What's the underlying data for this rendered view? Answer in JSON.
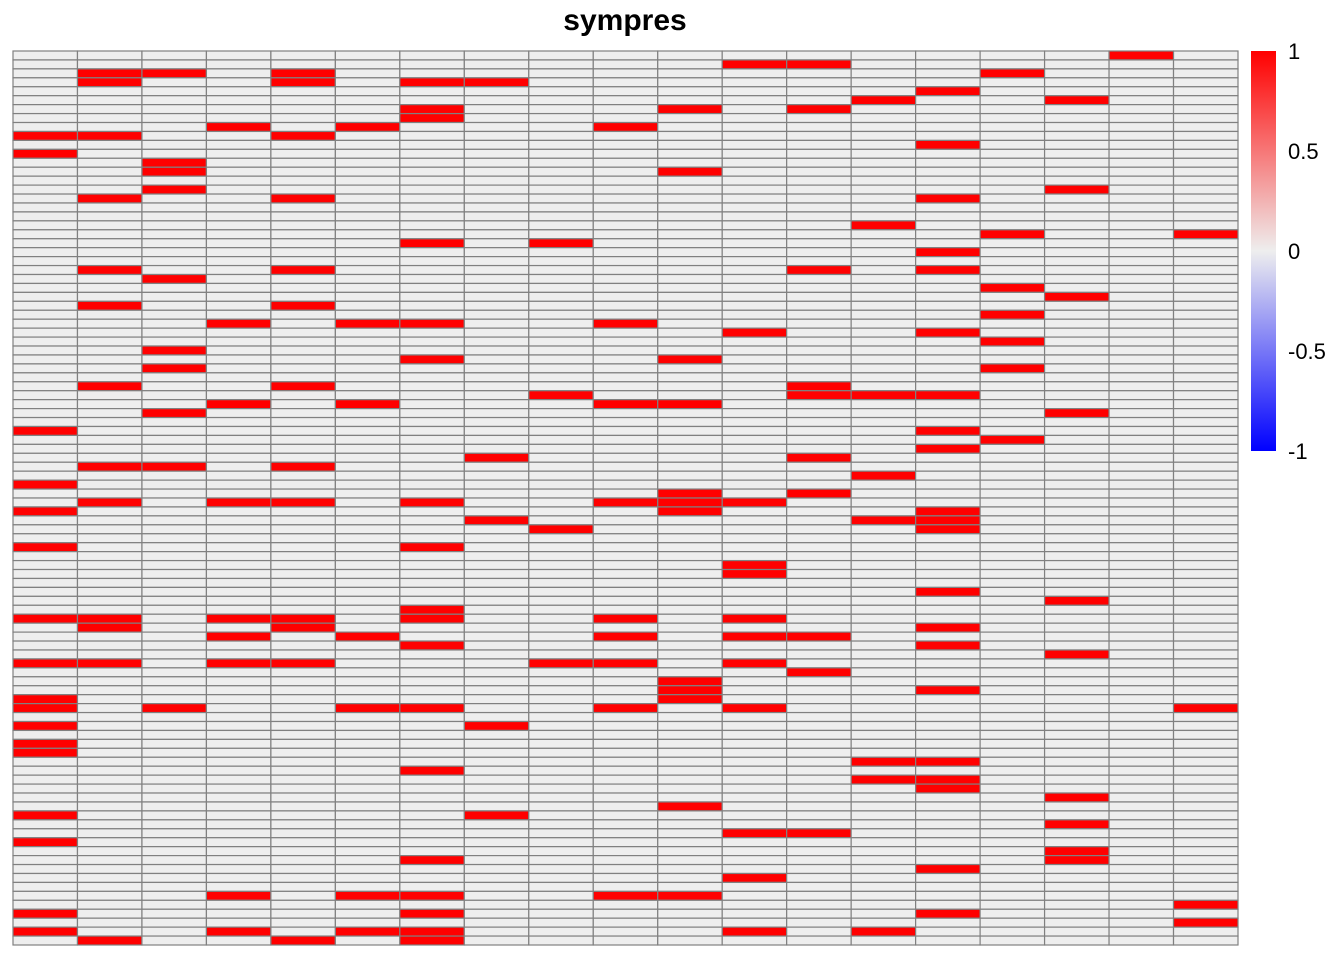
{
  "chart_data": {
    "type": "heatmap",
    "title": "sympres",
    "n_rows": 100,
    "n_cols": 19,
    "value_range": [
      -1,
      1
    ],
    "colors": {
      "low": "#0000ff",
      "mid": "#eeeeee",
      "high": "#ff0000",
      "grid": "#808080"
    },
    "legend": {
      "position": "right",
      "ticks": [
        1,
        0.5,
        0,
        -0.5,
        -1
      ],
      "tick_labels": [
        "1",
        "0.5",
        "0",
        "-0.5",
        "-1"
      ]
    },
    "cells_value_1": [
      [
        0,
        17
      ],
      [
        1,
        11
      ],
      [
        1,
        12
      ],
      [
        2,
        1
      ],
      [
        2,
        2
      ],
      [
        2,
        4
      ],
      [
        2,
        15
      ],
      [
        3,
        1
      ],
      [
        3,
        4
      ],
      [
        3,
        6
      ],
      [
        3,
        7
      ],
      [
        4,
        14
      ],
      [
        5,
        13
      ],
      [
        5,
        16
      ],
      [
        6,
        6
      ],
      [
        6,
        10
      ],
      [
        6,
        12
      ],
      [
        7,
        6
      ],
      [
        8,
        3
      ],
      [
        8,
        5
      ],
      [
        8,
        9
      ],
      [
        9,
        0
      ],
      [
        9,
        1
      ],
      [
        9,
        4
      ],
      [
        10,
        14
      ],
      [
        11,
        0
      ],
      [
        12,
        2
      ],
      [
        13,
        2
      ],
      [
        13,
        10
      ],
      [
        15,
        2
      ],
      [
        15,
        16
      ],
      [
        16,
        1
      ],
      [
        16,
        4
      ],
      [
        16,
        14
      ],
      [
        19,
        13
      ],
      [
        20,
        15
      ],
      [
        20,
        18
      ],
      [
        21,
        6
      ],
      [
        21,
        8
      ],
      [
        22,
        14
      ],
      [
        24,
        1
      ],
      [
        24,
        4
      ],
      [
        24,
        12
      ],
      [
        24,
        14
      ],
      [
        25,
        2
      ],
      [
        26,
        15
      ],
      [
        27,
        16
      ],
      [
        28,
        1
      ],
      [
        28,
        4
      ],
      [
        29,
        15
      ],
      [
        30,
        3
      ],
      [
        30,
        5
      ],
      [
        30,
        6
      ],
      [
        30,
        9
      ],
      [
        31,
        11
      ],
      [
        31,
        14
      ],
      [
        32,
        15
      ],
      [
        33,
        2
      ],
      [
        34,
        6
      ],
      [
        34,
        10
      ],
      [
        35,
        2
      ],
      [
        35,
        15
      ],
      [
        37,
        1
      ],
      [
        37,
        4
      ],
      [
        37,
        12
      ],
      [
        38,
        8
      ],
      [
        38,
        12
      ],
      [
        38,
        13
      ],
      [
        38,
        14
      ],
      [
        39,
        3
      ],
      [
        39,
        5
      ],
      [
        39,
        9
      ],
      [
        39,
        10
      ],
      [
        40,
        2
      ],
      [
        40,
        16
      ],
      [
        42,
        0
      ],
      [
        42,
        14
      ],
      [
        43,
        15
      ],
      [
        44,
        14
      ],
      [
        45,
        7
      ],
      [
        45,
        12
      ],
      [
        46,
        1
      ],
      [
        46,
        2
      ],
      [
        46,
        4
      ],
      [
        47,
        13
      ],
      [
        48,
        0
      ],
      [
        49,
        10
      ],
      [
        49,
        12
      ],
      [
        50,
        1
      ],
      [
        50,
        3
      ],
      [
        50,
        4
      ],
      [
        50,
        6
      ],
      [
        50,
        9
      ],
      [
        50,
        10
      ],
      [
        50,
        11
      ],
      [
        51,
        0
      ],
      [
        51,
        10
      ],
      [
        51,
        14
      ],
      [
        52,
        7
      ],
      [
        52,
        13
      ],
      [
        52,
        14
      ],
      [
        53,
        8
      ],
      [
        53,
        14
      ],
      [
        55,
        0
      ],
      [
        55,
        6
      ],
      [
        57,
        11
      ],
      [
        58,
        11
      ],
      [
        60,
        14
      ],
      [
        61,
        16
      ],
      [
        62,
        6
      ],
      [
        63,
        0
      ],
      [
        63,
        1
      ],
      [
        63,
        3
      ],
      [
        63,
        4
      ],
      [
        63,
        6
      ],
      [
        63,
        9
      ],
      [
        63,
        11
      ],
      [
        64,
        1
      ],
      [
        64,
        4
      ],
      [
        64,
        14
      ],
      [
        65,
        3
      ],
      [
        65,
        5
      ],
      [
        65,
        9
      ],
      [
        65,
        11
      ],
      [
        65,
        12
      ],
      [
        66,
        6
      ],
      [
        66,
        14
      ],
      [
        67,
        16
      ],
      [
        68,
        0
      ],
      [
        68,
        1
      ],
      [
        68,
        3
      ],
      [
        68,
        4
      ],
      [
        68,
        8
      ],
      [
        68,
        9
      ],
      [
        68,
        11
      ],
      [
        69,
        12
      ],
      [
        70,
        10
      ],
      [
        71,
        10
      ],
      [
        71,
        14
      ],
      [
        72,
        0
      ],
      [
        72,
        10
      ],
      [
        73,
        0
      ],
      [
        73,
        2
      ],
      [
        73,
        5
      ],
      [
        73,
        6
      ],
      [
        73,
        9
      ],
      [
        73,
        11
      ],
      [
        73,
        18
      ],
      [
        75,
        0
      ],
      [
        75,
        7
      ],
      [
        77,
        0
      ],
      [
        78,
        0
      ],
      [
        79,
        13
      ],
      [
        79,
        14
      ],
      [
        80,
        6
      ],
      [
        81,
        13
      ],
      [
        81,
        14
      ],
      [
        82,
        14
      ],
      [
        83,
        16
      ],
      [
        84,
        10
      ],
      [
        85,
        0
      ],
      [
        85,
        7
      ],
      [
        86,
        16
      ],
      [
        87,
        11
      ],
      [
        87,
        12
      ],
      [
        88,
        0
      ],
      [
        89,
        16
      ],
      [
        90,
        6
      ],
      [
        90,
        16
      ],
      [
        91,
        14
      ],
      [
        92,
        11
      ],
      [
        94,
        3
      ],
      [
        94,
        5
      ],
      [
        94,
        6
      ],
      [
        94,
        9
      ],
      [
        94,
        10
      ],
      [
        95,
        18
      ],
      [
        96,
        0
      ],
      [
        96,
        6
      ],
      [
        96,
        14
      ],
      [
        97,
        18
      ],
      [
        98,
        0
      ],
      [
        98,
        3
      ],
      [
        98,
        5
      ],
      [
        98,
        6
      ],
      [
        98,
        11
      ],
      [
        98,
        13
      ],
      [
        99,
        1
      ],
      [
        99,
        4
      ],
      [
        99,
        6
      ]
    ]
  }
}
